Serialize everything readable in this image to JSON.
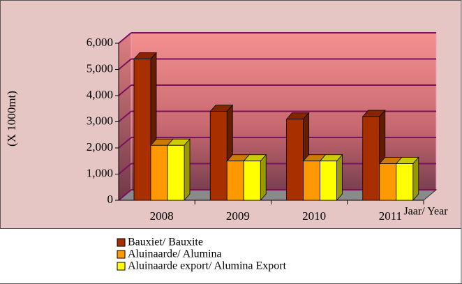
{
  "chart_data": {
    "type": "bar3d",
    "y_label": "(X 1000mt)",
    "x_label": "Jaar/ Year",
    "categories": [
      "2008",
      "2009",
      "2010",
      "2011"
    ],
    "series": [
      {
        "name": "Bauxiet/ Bauxite",
        "color": "#a83000",
        "values": [
          5400,
          3400,
          3100,
          3200
        ]
      },
      {
        "name": "Aluinaarde/ Alumina",
        "color": "#ff9900",
        "values": [
          2100,
          1500,
          1500,
          1400
        ]
      },
      {
        "name": "Aluinaarde export/ Alumina Export",
        "color": "#ffff00",
        "values": [
          2100,
          1500,
          1500,
          1400
        ]
      }
    ],
    "ylim": [
      0,
      6000
    ],
    "yticks": [
      0,
      {
        "value": 1000,
        "label": "1,000"
      },
      {
        "value": 2000,
        "label": "2,000"
      },
      {
        "value": 3000,
        "label": "3,000"
      },
      {
        "value": 4000,
        "label": "4,000"
      },
      {
        "value": 5000,
        "label": "5,000"
      },
      {
        "value": 6000,
        "label": "6,000"
      }
    ],
    "grid": true
  }
}
